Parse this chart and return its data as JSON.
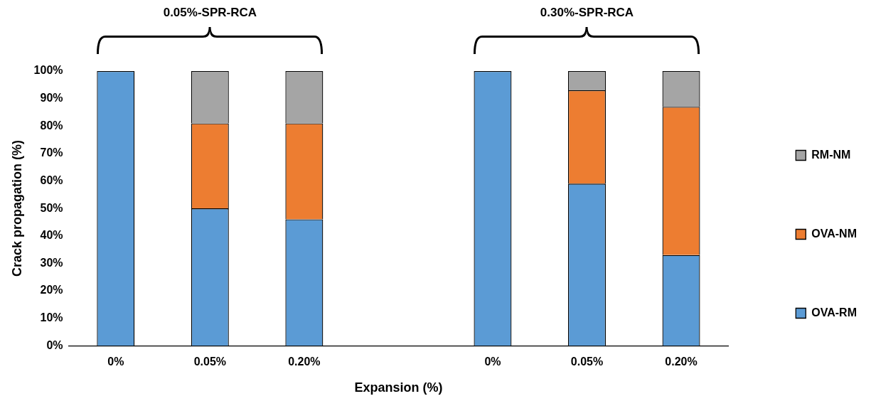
{
  "chart_data": {
    "type": "bar",
    "stacked": true,
    "xlabel": "Expansion (%)",
    "ylabel": "Crack propagation (%)",
    "categories": [
      "0%",
      "0.05%",
      "0.20%",
      null,
      "0%",
      "0.05%",
      "0.20%"
    ],
    "series": [
      {
        "name": "OVA-RM",
        "color": "#5b9bd5",
        "values": [
          100,
          50,
          46,
          null,
          100,
          59,
          33
        ]
      },
      {
        "name": "OVA-NM",
        "color": "#ed7d31",
        "values": [
          0,
          31,
          35,
          null,
          0,
          34,
          54
        ]
      },
      {
        "name": "RM-NM",
        "color": "#a5a5a5",
        "values": [
          0,
          19,
          19,
          null,
          0,
          7,
          13
        ]
      }
    ],
    "ylim": [
      0,
      100
    ],
    "yticks": [
      {
        "value": 0,
        "label": "0%"
      },
      {
        "value": 10,
        "label": "10%"
      },
      {
        "value": 20,
        "label": "20%"
      },
      {
        "value": 30,
        "label": "30%"
      },
      {
        "value": 40,
        "label": "40%"
      },
      {
        "value": 50,
        "label": "50%"
      },
      {
        "value": 60,
        "label": "60%"
      },
      {
        "value": 70,
        "label": "70%"
      },
      {
        "value": 80,
        "label": "80%"
      },
      {
        "value": 90,
        "label": "90%"
      },
      {
        "value": 100,
        "label": "100%"
      }
    ],
    "grid": false,
    "legend": "right",
    "annotations": [
      "0.05%-SPR-RCA",
      "0.30%-SPR-RCA"
    ]
  }
}
